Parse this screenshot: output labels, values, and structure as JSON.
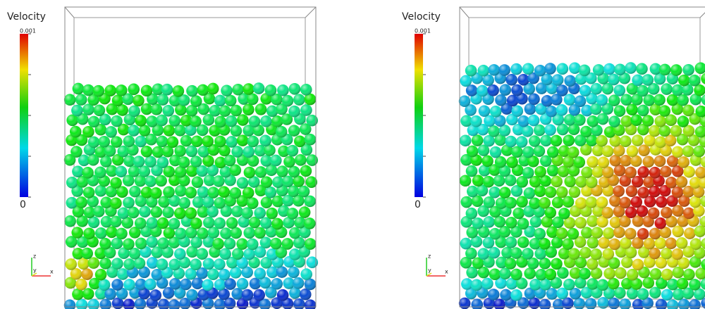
{
  "panels": [
    {
      "colorbar": {
        "title": "Velocity",
        "max_label": "0.001",
        "min_label": "0"
      },
      "axes": {
        "z": "z",
        "y": "y",
        "x": "x"
      }
    },
    {
      "colorbar": {
        "title": "Velocity",
        "max_label": "0.001",
        "min_label": "0"
      },
      "axes": {
        "z": "z",
        "y": "y",
        "x": "x"
      }
    }
  ]
}
